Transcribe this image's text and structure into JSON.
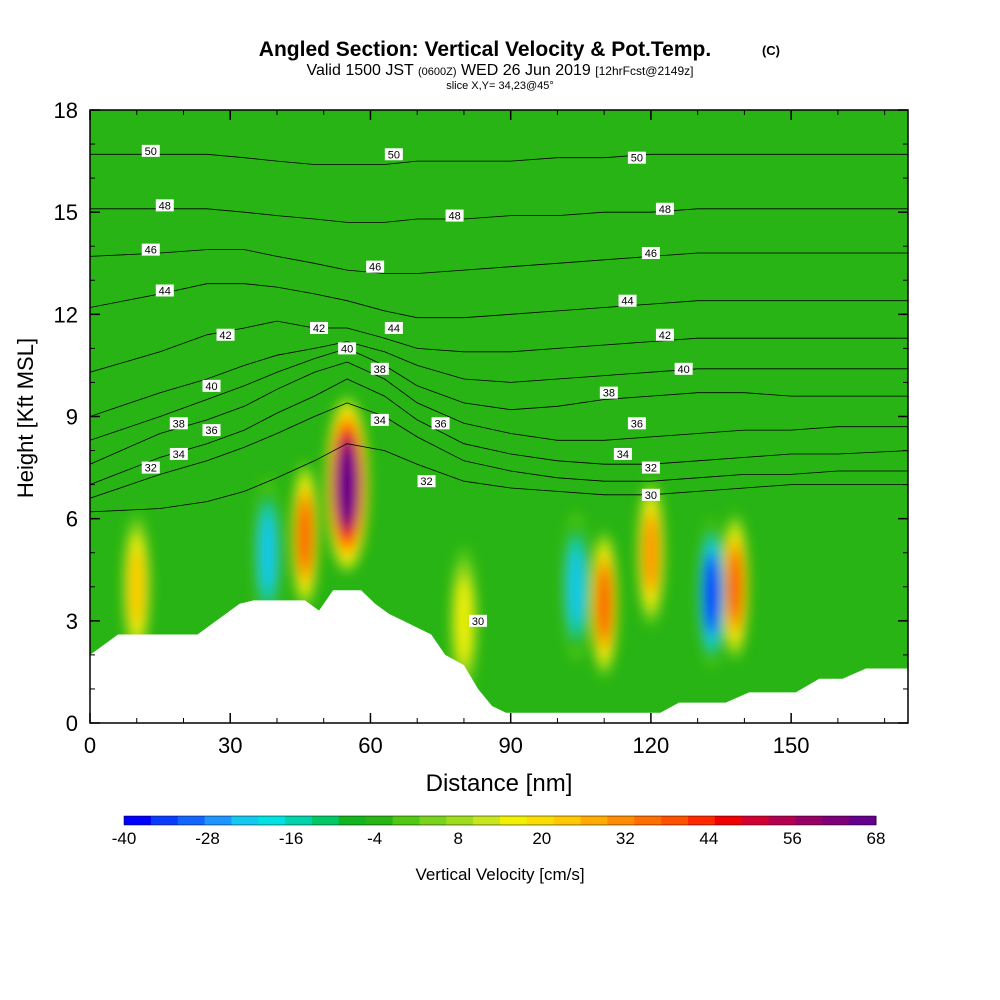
{
  "header": {
    "title": "Angled Section: Vertical Velocity & Pot.Temp.",
    "title_mark": "(C)",
    "valid_prefix": "Valid 1500 JST",
    "valid_utc": "(0600Z)",
    "valid_date": "WED 26 Jun 2019",
    "forecast": "[12hrFcst@2149z]",
    "slice": "slice X,Y= 34,23@45°"
  },
  "chart_data": {
    "type": "heatmap",
    "title": "Angled Section: Vertical Velocity & Pot.Temp.",
    "xlabel": "Distance [nm]",
    "ylabel": "Height [Kft MSL]",
    "xlim": [
      0,
      175
    ],
    "ylim": [
      0,
      18
    ],
    "x_ticks": [
      "0",
      "30",
      "60",
      "90",
      "120",
      "150"
    ],
    "y_ticks": [
      "0",
      "3",
      "6",
      "9",
      "12",
      "15",
      "18"
    ],
    "colorbar": {
      "label": "Vertical Velocity [cm/s]",
      "min": -40,
      "max": 68,
      "step": 4,
      "tick_labels": [
        "-40",
        "-28",
        "-16",
        "-4",
        "8",
        "20",
        "32",
        "44",
        "56",
        "68"
      ],
      "colors": [
        "#0000ff",
        "#0a3cff",
        "#1464ff",
        "#1e96ff",
        "#14c8f0",
        "#00e1e1",
        "#00d2aa",
        "#00c864",
        "#14b41e",
        "#28b414",
        "#50c814",
        "#78d21e",
        "#a0dc1e",
        "#c8e61e",
        "#f0f000",
        "#fadc00",
        "#ffc800",
        "#ffaa00",
        "#ff8c00",
        "#ff6e00",
        "#ff5000",
        "#ff2800",
        "#f00000",
        "#d20032",
        "#b40050",
        "#960064",
        "#7d0078",
        "#64008c"
      ]
    },
    "theta_contour_labels": [
      "30",
      "32",
      "34",
      "36",
      "38",
      "40",
      "42",
      "44",
      "46",
      "48",
      "50"
    ],
    "theta_units": "C",
    "vertical_velocity_features": [
      {
        "x": 55,
        "height": 7,
        "value": 68
      },
      {
        "x": 46,
        "height": 5.5,
        "value": 40
      },
      {
        "x": 110,
        "height": 3.5,
        "value": 40
      },
      {
        "x": 120,
        "height": 5,
        "value": 28
      },
      {
        "x": 138,
        "height": 4,
        "value": 36
      },
      {
        "x": 133,
        "height": 3.8,
        "value": -40
      },
      {
        "x": 104,
        "height": 4,
        "value": -20
      },
      {
        "x": 38,
        "height": 5,
        "value": -22
      },
      {
        "x": 10,
        "height": 4,
        "value": 20
      },
      {
        "x": 80,
        "height": 3,
        "value": 12
      }
    ],
    "terrain_profile": {
      "distance": [
        0,
        3,
        6,
        23,
        26,
        29,
        32,
        35,
        41,
        46,
        49,
        52,
        58,
        61,
        64,
        67,
        70,
        73,
        76,
        80,
        83,
        86,
        89,
        93,
        116,
        119,
        122,
        126,
        131,
        136,
        141,
        146,
        151,
        156,
        161,
        166,
        171,
        175
      ],
      "height_kft": [
        2.0,
        2.3,
        2.6,
        2.6,
        2.9,
        3.2,
        3.5,
        3.6,
        3.6,
        3.6,
        3.3,
        3.9,
        3.9,
        3.5,
        3.2,
        3.0,
        2.8,
        2.6,
        2.0,
        1.7,
        1.0,
        0.5,
        0.3,
        0.3,
        0.3,
        0.3,
        0.3,
        0.6,
        0.6,
        0.6,
        0.9,
        0.9,
        0.9,
        1.3,
        1.3,
        1.6,
        1.6,
        1.6
      ]
    },
    "isentropes": [
      {
        "value": 30,
        "x": [
          0,
          15,
          25,
          33,
          40,
          48,
          55,
          63,
          70,
          80,
          90,
          100,
          110,
          120,
          130,
          140,
          150,
          160,
          175
        ],
        "y": [
          6.2,
          6.3,
          6.5,
          6.8,
          7.2,
          7.7,
          8.2,
          8.0,
          7.6,
          7.1,
          6.9,
          6.8,
          6.7,
          6.7,
          6.8,
          6.9,
          7.0,
          7.0,
          7.0
        ]
      },
      {
        "value": 32,
        "x": [
          0,
          15,
          25,
          33,
          40,
          48,
          55,
          63,
          70,
          80,
          90,
          100,
          110,
          120,
          130,
          140,
          150,
          160,
          175
        ],
        "y": [
          6.6,
          7.3,
          7.7,
          8.1,
          8.5,
          9.0,
          9.4,
          9.0,
          8.4,
          7.7,
          7.4,
          7.2,
          7.1,
          7.1,
          7.2,
          7.3,
          7.3,
          7.4,
          7.4
        ]
      },
      {
        "value": 34,
        "x": [
          0,
          15,
          25,
          33,
          40,
          48,
          55,
          63,
          70,
          80,
          90,
          100,
          110,
          120,
          130,
          140,
          150,
          160,
          175
        ],
        "y": [
          7.0,
          7.8,
          8.2,
          8.6,
          9.1,
          9.6,
          10.1,
          9.6,
          8.9,
          8.2,
          7.9,
          7.7,
          7.6,
          7.6,
          7.7,
          7.8,
          7.9,
          7.9,
          8.0
        ]
      },
      {
        "value": 36,
        "x": [
          0,
          15,
          25,
          33,
          40,
          48,
          55,
          63,
          70,
          80,
          90,
          100,
          110,
          120,
          130,
          140,
          150,
          160,
          175
        ],
        "y": [
          7.6,
          8.5,
          8.9,
          9.3,
          9.8,
          10.3,
          10.6,
          10.1,
          9.4,
          8.8,
          8.5,
          8.3,
          8.3,
          8.4,
          8.5,
          8.6,
          8.6,
          8.7,
          8.7
        ]
      },
      {
        "value": 38,
        "x": [
          0,
          15,
          25,
          33,
          40,
          48,
          55,
          63,
          70,
          80,
          90,
          100,
          110,
          120,
          130,
          140,
          150,
          160,
          175
        ],
        "y": [
          8.3,
          9.0,
          9.5,
          9.9,
          10.3,
          10.7,
          11.0,
          10.5,
          9.9,
          9.4,
          9.2,
          9.3,
          9.5,
          9.6,
          9.7,
          9.7,
          9.6,
          9.6,
          9.6
        ]
      },
      {
        "value": 40,
        "x": [
          0,
          15,
          25,
          33,
          40,
          48,
          55,
          63,
          70,
          80,
          90,
          100,
          110,
          120,
          130,
          140,
          150,
          160,
          175
        ],
        "y": [
          9.0,
          9.7,
          10.1,
          10.5,
          10.8,
          11.0,
          11.2,
          10.9,
          10.5,
          10.1,
          10.0,
          10.1,
          10.2,
          10.3,
          10.4,
          10.4,
          10.4,
          10.4,
          10.4
        ]
      },
      {
        "value": 42,
        "x": [
          0,
          15,
          25,
          33,
          40,
          48,
          55,
          63,
          70,
          80,
          90,
          100,
          110,
          120,
          130,
          140,
          150,
          160,
          175
        ],
        "y": [
          10.3,
          10.9,
          11.4,
          11.6,
          11.8,
          11.6,
          11.6,
          11.3,
          11.0,
          10.9,
          10.9,
          11.0,
          11.1,
          11.2,
          11.3,
          11.3,
          11.3,
          11.3,
          11.3
        ]
      },
      {
        "value": 44,
        "x": [
          0,
          15,
          25,
          33,
          40,
          48,
          55,
          63,
          70,
          80,
          90,
          100,
          110,
          120,
          130,
          140,
          150,
          160,
          175
        ],
        "y": [
          12.2,
          12.6,
          12.9,
          12.9,
          12.8,
          12.6,
          12.4,
          12.1,
          11.9,
          11.9,
          12.0,
          12.1,
          12.2,
          12.3,
          12.4,
          12.4,
          12.4,
          12.4,
          12.4
        ]
      },
      {
        "value": 46,
        "x": [
          0,
          15,
          25,
          33,
          40,
          48,
          55,
          63,
          70,
          80,
          90,
          100,
          110,
          120,
          130,
          140,
          150,
          160,
          175
        ],
        "y": [
          13.7,
          13.8,
          13.9,
          13.9,
          13.7,
          13.5,
          13.3,
          13.2,
          13.2,
          13.3,
          13.4,
          13.5,
          13.6,
          13.7,
          13.8,
          13.8,
          13.8,
          13.8,
          13.8
        ]
      },
      {
        "value": 48,
        "x": [
          0,
          15,
          25,
          33,
          40,
          48,
          55,
          63,
          70,
          80,
          90,
          100,
          110,
          120,
          130,
          140,
          150,
          160,
          175
        ],
        "y": [
          15.1,
          15.1,
          15.1,
          15.0,
          14.9,
          14.8,
          14.7,
          14.7,
          14.8,
          14.8,
          14.9,
          14.9,
          15.0,
          15.0,
          15.1,
          15.1,
          15.1,
          15.1,
          15.1
        ]
      },
      {
        "value": 50,
        "x": [
          0,
          15,
          25,
          33,
          40,
          48,
          55,
          63,
          70,
          80,
          90,
          100,
          110,
          120,
          130,
          140,
          150,
          160,
          175
        ],
        "y": [
          16.7,
          16.7,
          16.7,
          16.6,
          16.5,
          16.4,
          16.4,
          16.4,
          16.5,
          16.5,
          16.5,
          16.6,
          16.6,
          16.7,
          16.7,
          16.7,
          16.7,
          16.7,
          16.7
        ]
      }
    ],
    "contour_label_positions": [
      {
        "text": "50",
        "x": 13,
        "y": 16.8
      },
      {
        "text": "50",
        "x": 65,
        "y": 16.7
      },
      {
        "text": "50",
        "x": 117,
        "y": 16.6
      },
      {
        "text": "48",
        "x": 16,
        "y": 15.2
      },
      {
        "text": "48",
        "x": 78,
        "y": 14.9
      },
      {
        "text": "48",
        "x": 123,
        "y": 15.1
      },
      {
        "text": "46",
        "x": 13,
        "y": 13.9
      },
      {
        "text": "46",
        "x": 61,
        "y": 13.4
      },
      {
        "text": "46",
        "x": 120,
        "y": 13.8
      },
      {
        "text": "44",
        "x": 16,
        "y": 12.7
      },
      {
        "text": "44",
        "x": 65,
        "y": 11.6
      },
      {
        "text": "44",
        "x": 115,
        "y": 12.4
      },
      {
        "text": "42",
        "x": 29,
        "y": 11.4
      },
      {
        "text": "42",
        "x": 49,
        "y": 11.6
      },
      {
        "text": "42",
        "x": 123,
        "y": 11.4
      },
      {
        "text": "40",
        "x": 26,
        "y": 9.9
      },
      {
        "text": "40",
        "x": 55,
        "y": 11.0
      },
      {
        "text": "40",
        "x": 127,
        "y": 10.4
      },
      {
        "text": "38",
        "x": 19,
        "y": 8.8
      },
      {
        "text": "38",
        "x": 62,
        "y": 10.4
      },
      {
        "text": "38",
        "x": 111,
        "y": 9.7
      },
      {
        "text": "36",
        "x": 26,
        "y": 8.6
      },
      {
        "text": "36",
        "x": 75,
        "y": 8.8
      },
      {
        "text": "36",
        "x": 117,
        "y": 8.8
      },
      {
        "text": "34",
        "x": 19,
        "y": 7.9
      },
      {
        "text": "34",
        "x": 62,
        "y": 8.9
      },
      {
        "text": "34",
        "x": 114,
        "y": 7.9
      },
      {
        "text": "32",
        "x": 13,
        "y": 7.5
      },
      {
        "text": "32",
        "x": 72,
        "y": 7.1
      },
      {
        "text": "32",
        "x": 120,
        "y": 7.5
      },
      {
        "text": "30",
        "x": 120,
        "y": 6.7
      },
      {
        "text": "30",
        "x": 83,
        "y": 3.0
      }
    ]
  }
}
